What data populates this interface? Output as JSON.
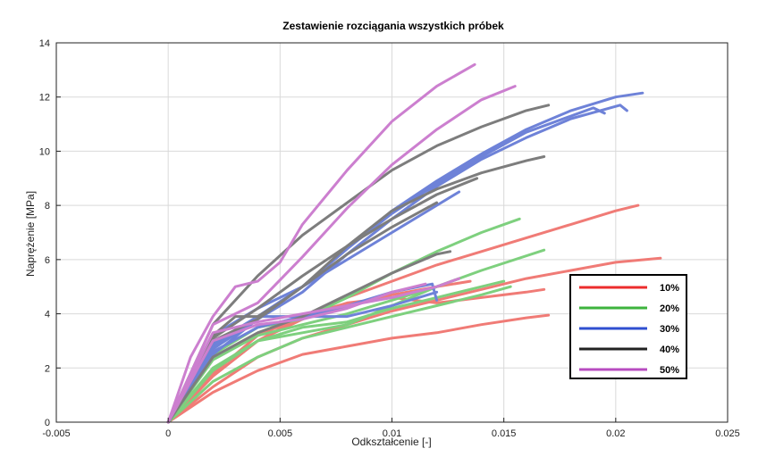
{
  "chart_data": {
    "type": "line",
    "title": "Zestawienie rozciągania wszystkich próbek",
    "xlabel": "Odkształcenie [-]",
    "ylabel": "Naprężenie [MPa]",
    "xlim": [
      -0.005,
      0.025
    ],
    "ylim": [
      0,
      14
    ],
    "xticks": [
      -0.005,
      0,
      0.005,
      0.01,
      0.015,
      0.02,
      0.025
    ],
    "xtick_labels": [
      "-0.005",
      "0",
      "0.005",
      "0.01",
      "0.015",
      "0.02",
      "0.025"
    ],
    "yticks": [
      0,
      2,
      4,
      6,
      8,
      10,
      12,
      14
    ],
    "ytick_labels": [
      "0",
      "2",
      "4",
      "6",
      "8",
      "10",
      "12",
      "14"
    ],
    "grid": true,
    "legend_position": "bottom-right",
    "groups": [
      {
        "name": "10%",
        "color": "#f07b76",
        "legend_color": "#ec2d2d"
      },
      {
        "name": "20%",
        "color": "#7ed07e",
        "legend_color": "#3db33d"
      },
      {
        "name": "30%",
        "color": "#6e82d8",
        "legend_color": "#2f4fd0"
      },
      {
        "name": "40%",
        "color": "#7d7d7d",
        "legend_color": "#222222"
      },
      {
        "name": "50%",
        "color": "#cc7fcf",
        "legend_color": "#b84cc0"
      }
    ],
    "series": [
      {
        "group": 0,
        "x": [
          0,
          0.002,
          0.004,
          0.006,
          0.008,
          0.01,
          0.012,
          0.014,
          0.016,
          0.018,
          0.02,
          0.021
        ],
        "y": [
          0,
          1.7,
          3.0,
          3.9,
          4.6,
          5.2,
          5.8,
          6.3,
          6.8,
          7.3,
          7.8,
          8.0
        ]
      },
      {
        "group": 0,
        "x": [
          0,
          0.002,
          0.004,
          0.006,
          0.008,
          0.01,
          0.012,
          0.014,
          0.016,
          0.018,
          0.02,
          0.022
        ],
        "y": [
          0,
          1.3,
          2.4,
          3.1,
          3.6,
          4.1,
          4.5,
          4.9,
          5.3,
          5.6,
          5.9,
          6.05
        ]
      },
      {
        "group": 0,
        "x": [
          0,
          0.002,
          0.004,
          0.006,
          0.008,
          0.01,
          0.012,
          0.014,
          0.016,
          0.017
        ],
        "y": [
          0,
          1.1,
          1.9,
          2.5,
          2.8,
          3.1,
          3.3,
          3.6,
          3.85,
          3.95
        ]
      },
      {
        "group": 0,
        "x": [
          0,
          0.002,
          0.004,
          0.006,
          0.008,
          0.01,
          0.012,
          0.014,
          0.016,
          0.0168
        ],
        "y": [
          0,
          1.8,
          3.2,
          3.9,
          4.4,
          4.6,
          4.4,
          4.6,
          4.8,
          4.9
        ]
      },
      {
        "group": 0,
        "x": [
          0,
          0.002,
          0.004,
          0.006,
          0.008,
          0.01,
          0.012,
          0.0135
        ],
        "y": [
          0,
          1.7,
          3.0,
          3.8,
          4.3,
          4.7,
          5.0,
          5.2
        ]
      },
      {
        "group": 1,
        "x": [
          0,
          0.002,
          0.004,
          0.006,
          0.008,
          0.01,
          0.012,
          0.014,
          0.0157
        ],
        "y": [
          0,
          2.5,
          3.5,
          3.8,
          4.6,
          5.5,
          6.3,
          7.0,
          7.5
        ]
      },
      {
        "group": 1,
        "x": [
          0,
          0.002,
          0.004,
          0.006,
          0.008,
          0.01,
          0.012,
          0.014,
          0.0168
        ],
        "y": [
          0,
          1.9,
          3.0,
          3.3,
          3.6,
          4.3,
          5.0,
          5.6,
          6.35
        ]
      },
      {
        "group": 1,
        "x": [
          0,
          0.002,
          0.004,
          0.006,
          0.008,
          0.01,
          0.012,
          0.014,
          0.0153
        ],
        "y": [
          0,
          1.5,
          2.4,
          3.1,
          3.5,
          3.9,
          4.3,
          4.7,
          5.0
        ]
      },
      {
        "group": 1,
        "x": [
          0,
          0.002,
          0.004,
          0.006,
          0.008,
          0.01,
          0.012,
          0.014,
          0.015
        ],
        "y": [
          0,
          2.0,
          3.0,
          3.5,
          3.7,
          4.2,
          4.6,
          5.0,
          5.2
        ]
      },
      {
        "group": 1,
        "x": [
          0,
          0.002,
          0.004,
          0.006,
          0.008,
          0.01,
          0.012,
          0.013
        ],
        "y": [
          0,
          2.3,
          3.2,
          3.6,
          4.0,
          4.5,
          5.0,
          5.3
        ]
      },
      {
        "group": 2,
        "x": [
          0,
          0.002,
          0.004,
          0.006,
          0.008,
          0.01,
          0.012,
          0.014,
          0.016,
          0.018,
          0.02,
          0.0212
        ],
        "y": [
          0,
          2.5,
          3.8,
          5.0,
          6.4,
          7.8,
          8.9,
          9.9,
          10.8,
          11.5,
          12.0,
          12.15
        ]
      },
      {
        "group": 2,
        "x": [
          0,
          0.002,
          0.004,
          0.006,
          0.008,
          0.01,
          0.012,
          0.014,
          0.016,
          0.018,
          0.019,
          0.0195
        ],
        "y": [
          0,
          2.8,
          3.9,
          5.0,
          6.4,
          7.7,
          8.8,
          9.8,
          10.7,
          11.3,
          11.6,
          11.4
        ]
      },
      {
        "group": 2,
        "x": [
          0,
          0.002,
          0.004,
          0.006,
          0.008,
          0.01,
          0.012,
          0.014,
          0.016,
          0.018,
          0.0202,
          0.0205
        ],
        "y": [
          0,
          2.7,
          3.8,
          4.8,
          6.2,
          7.5,
          8.7,
          9.7,
          10.5,
          11.2,
          11.7,
          11.5
        ]
      },
      {
        "group": 2,
        "x": [
          0,
          0.002,
          0.004,
          0.006,
          0.008,
          0.01,
          0.0118,
          0.012
        ],
        "y": [
          0,
          2.6,
          3.5,
          3.9,
          4.3,
          4.8,
          5.1,
          4.5
        ]
      },
      {
        "group": 2,
        "x": [
          0,
          0.002,
          0.004,
          0.006,
          0.008,
          0.01,
          0.012
        ],
        "y": [
          0,
          2.9,
          3.9,
          3.9,
          3.9,
          4.3,
          4.8
        ]
      },
      {
        "group": 2,
        "x": [
          0,
          0.002,
          0.004,
          0.006,
          0.008,
          0.01,
          0.012,
          0.013
        ],
        "y": [
          0,
          3.2,
          4.2,
          5.0,
          6.0,
          7.0,
          8.0,
          8.5
        ]
      },
      {
        "group": 3,
        "x": [
          0,
          0.002,
          0.004,
          0.006,
          0.008,
          0.01,
          0.012,
          0.014,
          0.016,
          0.017
        ],
        "y": [
          0,
          3.6,
          5.4,
          6.9,
          8.1,
          9.3,
          10.2,
          10.9,
          11.5,
          11.7
        ]
      },
      {
        "group": 3,
        "x": [
          0,
          0.002,
          0.004,
          0.006,
          0.008,
          0.01,
          0.012,
          0.014,
          0.016,
          0.0168
        ],
        "y": [
          0,
          3.0,
          3.8,
          5.0,
          6.5,
          7.8,
          8.6,
          9.2,
          9.65,
          9.8
        ]
      },
      {
        "group": 3,
        "x": [
          0,
          0.002,
          0.004,
          0.006,
          0.008,
          0.01,
          0.012,
          0.0138
        ],
        "y": [
          0,
          3.1,
          4.2,
          5.4,
          6.5,
          7.5,
          8.4,
          9.0
        ]
      },
      {
        "group": 3,
        "x": [
          0,
          0.002,
          0.004,
          0.006,
          0.008,
          0.01,
          0.012,
          0.0126
        ],
        "y": [
          0,
          2.4,
          3.3,
          3.9,
          4.7,
          5.5,
          6.2,
          6.3
        ]
      },
      {
        "group": 3,
        "x": [
          0,
          0.002,
          0.003,
          0.004,
          0.005,
          0.006,
          0.008,
          0.01,
          0.012
        ],
        "y": [
          0,
          3.2,
          3.9,
          3.9,
          4.4,
          5.0,
          6.2,
          7.2,
          8.1
        ]
      },
      {
        "group": 4,
        "x": [
          0,
          0.001,
          0.002,
          0.003,
          0.004,
          0.005,
          0.006,
          0.008,
          0.01,
          0.012,
          0.0137
        ],
        "y": [
          0,
          2.4,
          3.9,
          5.0,
          5.2,
          5.9,
          7.3,
          9.3,
          11.1,
          12.4,
          13.2
        ]
      },
      {
        "group": 4,
        "x": [
          0,
          0.002,
          0.004,
          0.006,
          0.008,
          0.01,
          0.012,
          0.014,
          0.0155
        ],
        "y": [
          0,
          3.6,
          4.4,
          6.1,
          7.9,
          9.5,
          10.8,
          11.9,
          12.4
        ]
      },
      {
        "group": 4,
        "x": [
          0,
          0.002,
          0.004,
          0.006,
          0.008,
          0.01,
          0.012,
          0.013
        ],
        "y": [
          0,
          3.3,
          3.7,
          4.0,
          4.3,
          4.6,
          5.0,
          5.3
        ]
      },
      {
        "group": 4,
        "x": [
          0,
          0.002,
          0.004,
          0.006,
          0.008,
          0.01,
          0.0115
        ],
        "y": [
          0,
          3.0,
          3.6,
          3.8,
          4.2,
          4.8,
          5.1
        ]
      }
    ]
  }
}
